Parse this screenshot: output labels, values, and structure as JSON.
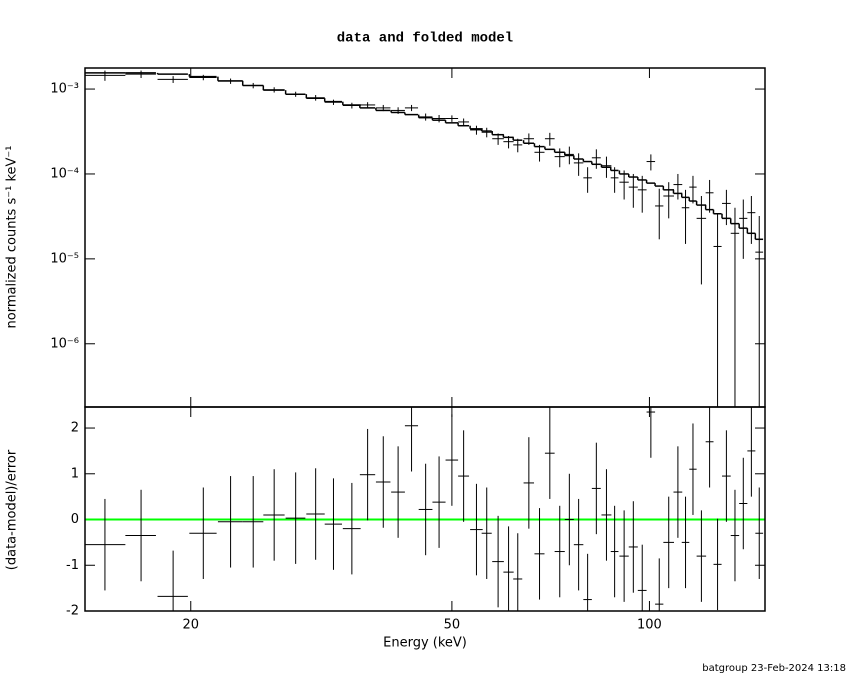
{
  "chart_data": [
    {
      "type": "errorbar",
      "title": "data and folded model",
      "y_label": "normalized counts s⁻¹ keV⁻¹",
      "log_x": true,
      "log_y": true,
      "xlim": [
        13.8,
        150
      ],
      "ylim": [
        1.8e-07,
        0.00177
      ],
      "xticks": [
        20,
        50,
        100
      ],
      "yticks": [
        {
          "value": 0.001,
          "label": "10⁻³"
        },
        {
          "value": 0.0001,
          "label": "10⁻⁴"
        },
        {
          "value": 1e-05,
          "label": "10⁻⁵"
        },
        {
          "value": 1e-06,
          "label": "10⁻⁶"
        }
      ],
      "x": [
        14.8,
        16.8,
        18.8,
        20.9,
        23.0,
        24.9,
        26.8,
        28.9,
        31.0,
        33.0,
        35.2,
        37.2,
        39.3,
        41.4,
        43.4,
        45.6,
        47.8,
        50.0,
        52.1,
        54.5,
        56.5,
        58.8,
        61.0,
        63.0,
        65.5,
        68.0,
        70.5,
        73.0,
        75.5,
        78.0,
        80.5,
        83.0,
        86.0,
        88.5,
        91.5,
        94.5,
        97.5,
        100.5,
        103.5,
        107.0,
        110.5,
        113.5,
        116.5,
        120.0,
        123.5,
        127.0,
        131.0,
        135.0,
        139.0,
        143.0,
        147.0
      ],
      "xerr": [
        1.1,
        0.9,
        1.0,
        1.0,
        1.0,
        0.9,
        1.0,
        1.0,
        1.0,
        1.0,
        1.1,
        1.0,
        1.0,
        1.0,
        1.0,
        1.1,
        1.1,
        1.1,
        1.0,
        1.2,
        1.0,
        1.2,
        1.1,
        1.0,
        1.2,
        1.2,
        1.2,
        1.3,
        1.2,
        1.3,
        1.2,
        1.3,
        1.5,
        1.2,
        1.5,
        1.5,
        1.5,
        1.5,
        1.5,
        2.0,
        1.7,
        1.5,
        1.5,
        2.0,
        1.7,
        1.8,
        2.0,
        2.0,
        2.0,
        2.0,
        2.0
      ],
      "series": [
        {
          "color": "#000000",
          "values": [
            0.00145,
            0.0015,
            0.0013,
            0.00137,
            0.00124,
            0.0011,
            0.00098,
            0.00087,
            0.00079,
            0.0007,
            0.00064,
            0.00065,
            0.0006,
            0.00056,
            0.0006,
            0.00047,
            0.00045,
            0.00045,
            0.00041,
            0.00033,
            0.00031,
            0.00026,
            0.00024,
            0.00022,
            0.00026,
            0.00018,
            0.00026,
            0.00016,
            0.00017,
            0.000135,
            9e-05,
            0.000155,
            0.000125,
            9e-05,
            8e-05,
            7e-05,
            6.5e-05,
            0.00014,
            4.2e-05,
            5.5e-05,
            7.5e-05,
            4e-05,
            7e-05,
            3e-05,
            6e-05,
            1.4e-05,
            4.5e-05,
            2e-05,
            3e-05,
            3.5e-05,
            1.2e-05
          ],
          "errors": [
            0.0002,
            0.00015,
            0.00012,
            0.0001,
            9e-05,
            8e-05,
            7e-05,
            6e-05,
            6e-05,
            5e-05,
            5e-05,
            5e-05,
            5e-05,
            5e-05,
            5e-05,
            4.5e-05,
            4.5e-05,
            4e-05,
            4e-05,
            4e-05,
            4e-05,
            4e-05,
            4e-05,
            4e-05,
            4e-05,
            4e-05,
            4.5e-05,
            4e-05,
            4e-05,
            4e-05,
            3e-05,
            4e-05,
            3.5e-05,
            3e-05,
            3e-05,
            3e-05,
            3e-05,
            3e-05,
            2.5e-05,
            2.5e-05,
            2.5e-05,
            2.5e-05,
            2.5e-05,
            2.5e-05,
            2.5e-05,
            2e-05,
            2e-05,
            2e-05,
            2e-05,
            2e-05,
            2e-05
          ]
        },
        {
          "color": "#000000",
          "style": "step",
          "values": [
            0.00155,
            0.00155,
            0.0015,
            0.0014,
            0.00125,
            0.0011,
            0.00097,
            0.00087,
            0.00078,
            0.00071,
            0.00065,
            0.0006,
            0.00056,
            0.00053,
            0.0005,
            0.00046,
            0.00043,
            0.0004,
            0.00037,
            0.00034,
            0.00032,
            0.00029,
            0.00027,
            0.00025,
            0.00023,
            0.00021,
            0.000195,
            0.00018,
            0.000165,
            0.00015,
            0.00014,
            0.00013,
            0.00012,
            0.00011,
            0.0001,
            9.2e-05,
            8.5e-05,
            7.8e-05,
            7.2e-05,
            6.5e-05,
            5.9e-05,
            5.3e-05,
            4.8e-05,
            4.3e-05,
            3.8e-05,
            3.4e-05,
            3e-05,
            2.6e-05,
            2.3e-05,
            2e-05,
            1.7e-05
          ]
        }
      ]
    },
    {
      "type": "errorbar",
      "y_label": "(data-model)/error",
      "x_label": "Energy (keV)",
      "log_x": true,
      "log_y": false,
      "xlim": [
        13.8,
        150
      ],
      "ylim": [
        -2,
        2.46
      ],
      "xticks": [
        20,
        50,
        100
      ],
      "yticks": [
        -2,
        -1,
        0,
        1,
        2
      ],
      "reference_line": {
        "value": 0,
        "color": "#00ff00"
      },
      "x": [
        14.8,
        16.8,
        18.8,
        20.9,
        23.0,
        24.9,
        26.8,
        28.9,
        31.0,
        33.0,
        35.2,
        37.2,
        39.3,
        41.4,
        43.4,
        45.6,
        47.8,
        50.0,
        52.1,
        54.5,
        56.5,
        58.8,
        61.0,
        63.0,
        65.5,
        68.0,
        70.5,
        73.0,
        75.5,
        78.0,
        80.5,
        83.0,
        86.0,
        88.5,
        91.5,
        94.5,
        97.5,
        100.5,
        103.5,
        107.0,
        110.5,
        113.5,
        116.5,
        120.0,
        123.5,
        127.0,
        131.0,
        135.0,
        139.0,
        143.0,
        147.0
      ],
      "xerr": [
        1.1,
        0.9,
        1.0,
        1.0,
        1.0,
        0.9,
        1.0,
        1.0,
        1.0,
        1.0,
        1.1,
        1.0,
        1.0,
        1.0,
        1.0,
        1.1,
        1.1,
        1.1,
        1.0,
        1.2,
        1.0,
        1.2,
        1.1,
        1.0,
        1.2,
        1.2,
        1.2,
        1.3,
        1.2,
        1.3,
        1.2,
        1.3,
        1.5,
        1.2,
        1.5,
        1.5,
        1.5,
        1.5,
        1.5,
        2.0,
        1.7,
        1.5,
        1.5,
        2.0,
        1.7,
        1.8,
        2.0,
        2.0,
        2.0,
        2.0,
        2.0
      ],
      "series": [
        {
          "color": "#000000",
          "values": [
            -0.55,
            -0.35,
            -1.68,
            -0.3,
            -0.05,
            -0.05,
            0.1,
            0.03,
            0.12,
            -0.1,
            -0.2,
            0.98,
            0.82,
            0.6,
            2.05,
            0.22,
            0.38,
            1.3,
            0.95,
            -0.22,
            -0.3,
            -0.92,
            -1.15,
            -1.3,
            0.8,
            -0.75,
            1.45,
            -0.7,
            0.0,
            -0.55,
            -1.75,
            0.68,
            0.1,
            -0.7,
            -0.8,
            -0.6,
            -1.55,
            2.35,
            -1.85,
            -0.5,
            0.6,
            -0.5,
            1.1,
            -0.8,
            1.7,
            -0.98,
            0.95,
            -0.35,
            0.35,
            1.5,
            -0.3
          ],
          "errors": [
            1,
            1,
            1,
            1,
            1,
            1,
            1,
            1,
            1,
            1,
            1,
            1,
            1,
            1,
            1,
            1,
            1,
            1,
            1,
            1,
            1,
            1,
            1,
            1,
            1,
            1,
            1,
            1,
            1,
            1,
            1,
            1,
            1,
            1,
            1,
            1,
            1,
            1,
            1,
            1,
            1,
            1,
            1,
            1,
            1,
            1,
            1,
            1,
            1,
            1,
            1
          ]
        }
      ]
    }
  ],
  "footer": "batgroup 23-Feb-2024 13:18"
}
